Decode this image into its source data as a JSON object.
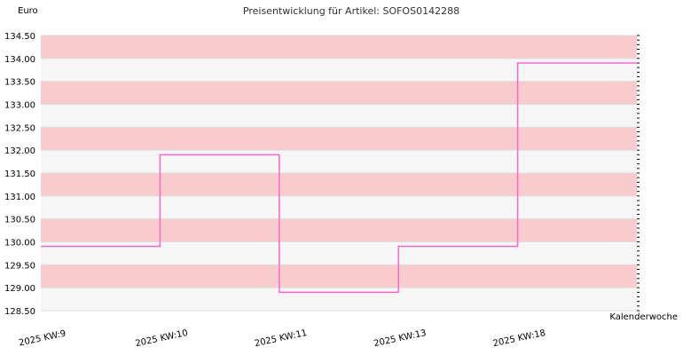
{
  "chart_data": {
    "type": "line",
    "step": true,
    "title": "Preisentwicklung für Artikel: SOFOS0142288",
    "ylabel": "Euro",
    "xlabel": "Kalenderwoche",
    "ylim": [
      128.5,
      134.5
    ],
    "yticks": [
      128.5,
      129.0,
      129.5,
      130.0,
      130.5,
      131.0,
      131.5,
      132.0,
      132.5,
      133.0,
      133.5,
      134.0,
      134.5
    ],
    "categories": [
      "2025 KW:9",
      "2025 KW:10",
      "2025 KW:11",
      "2025 KW:13",
      "2025 KW:18"
    ],
    "series": [
      {
        "values": [
          129.9,
          131.9,
          128.9,
          129.9,
          133.9
        ]
      }
    ],
    "colors": {
      "line": "#ff66cc",
      "band_dark": "#f8cccc",
      "band_light": "#f6f6f6",
      "grid": "#dddddd"
    },
    "grid": true,
    "legend": "none"
  }
}
